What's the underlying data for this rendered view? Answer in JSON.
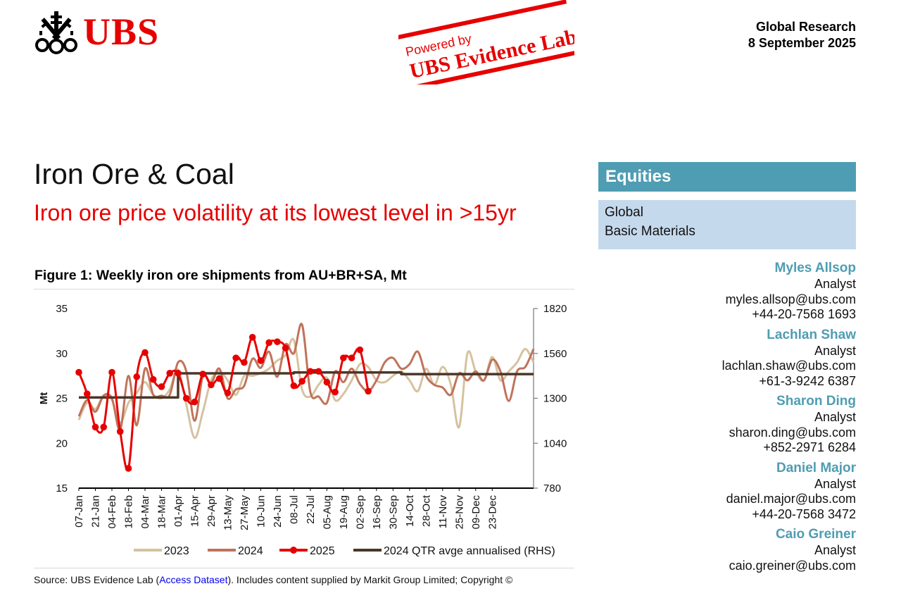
{
  "header": {
    "logo_text": "UBS",
    "logo_icon": "ubs-keys-icon",
    "stamp_top": "Powered by",
    "stamp_bottom": "UBS Evidence Lab",
    "division": "Global Research",
    "date": "8 September 2025"
  },
  "title": "Iron Ore & Coal",
  "subtitle": "Iron ore price volatility at its lowest level in >15yr",
  "figure": {
    "title": "Figure 1: Weekly iron ore shipments from AU+BR+SA, Mt",
    "source_prefix": "Source: UBS Evidence Lab (",
    "source_link": "Access Dataset",
    "source_suffix": "). Includes content supplied by Markit Group Limited; Copyright ©"
  },
  "chart_data": {
    "type": "line",
    "title": "Weekly iron ore shipments from AU+BR+SA, Mt",
    "ylabel": "Mt",
    "ylim": [
      15,
      35
    ],
    "yticks": [
      15,
      20,
      25,
      30,
      35
    ],
    "y2lim": [
      780,
      1820
    ],
    "y2ticks": [
      780,
      1040,
      1300,
      1560,
      1820
    ],
    "x_tick_labels": [
      "07-Jan",
      "21-Jan",
      "04-Feb",
      "18-Feb",
      "04-Mar",
      "18-Mar",
      "01-Apr",
      "15-Apr",
      "29-Apr",
      "13-May",
      "27-May",
      "10-Jun",
      "24-Jun",
      "08-Jul",
      "22-Jul",
      "05-Aug",
      "19-Aug",
      "02-Sep",
      "16-Sep",
      "30-Sep",
      "14-Oct",
      "28-Oct",
      "11-Nov",
      "25-Nov",
      "09-Dec",
      "23-Dec"
    ],
    "legend_position": "bottom",
    "grid": false,
    "series": [
      {
        "name": "2023",
        "color": "#d6c2a0",
        "axis": "left",
        "smooth": true,
        "values": [
          22.6,
          24.5,
          23.8,
          25.3,
          24.8,
          22.3,
          24.5,
          25.6,
          26.8,
          25.4,
          25.0,
          26.0,
          28.2,
          24.3,
          20.6,
          23.5,
          27.0,
          28.0,
          27.0,
          25.4,
          27.5,
          27.5,
          27.8,
          28.3,
          29.2,
          29.8,
          31.5,
          26.0,
          25.2,
          26.5,
          27.3,
          24.8,
          25.5,
          27.0,
          28.8,
          28.5,
          27.0,
          26.8,
          27.5,
          28.0,
          27.0,
          25.8,
          28.3,
          26.5,
          28.5,
          26.5,
          21.8,
          30.0,
          28.0,
          27.0,
          29.6,
          27.0,
          28.0,
          29.0,
          30.5,
          29.0
        ]
      },
      {
        "name": "2024",
        "color": "#c0735a",
        "axis": "left",
        "smooth": true,
        "values": [
          23.0,
          24.8,
          23.5,
          25.3,
          25.0,
          21.5,
          27.5,
          22.0,
          28.3,
          25.4,
          25.3,
          25.4,
          29.0,
          28.0,
          22.5,
          27.5,
          26.7,
          28.3,
          25.0,
          26.0,
          26.4,
          29.4,
          28.4,
          30.2,
          27.4,
          31.0,
          30.0,
          33.2,
          25.7,
          25.2,
          24.5,
          28.0,
          26.8,
          28.3,
          26.6,
          25.8,
          27.0,
          29.0,
          29.5,
          28.3,
          28.8,
          30.2,
          27.5,
          26.5,
          26.2,
          25.4,
          27.8,
          27.0,
          28.0,
          27.0,
          29.3,
          28.0,
          24.7,
          28.0,
          28.5,
          30.5
        ]
      },
      {
        "name": "2025",
        "color": "#e60000",
        "axis": "left",
        "smooth": true,
        "markers": true,
        "values": [
          27.9,
          25.5,
          21.8,
          21.8,
          27.9,
          21.3,
          17.2,
          27.4,
          30.1,
          27.1,
          26.3,
          27.8,
          27.8,
          25.0,
          24.6,
          27.7,
          26.5,
          27.2,
          25.6,
          29.5,
          29.0,
          31.8,
          29.2,
          31.2,
          31.3,
          30.6,
          26.4,
          26.9,
          28.0,
          28.0,
          26.8,
          25.7,
          29.5,
          29.5,
          30.4,
          25.8
        ]
      },
      {
        "name": "2024 QTR avge annualised (RHS)",
        "color": "#4a3728",
        "axis": "right",
        "step": true,
        "values": [
          1305,
          1305,
          1305,
          1305,
          1305,
          1305,
          1305,
          1305,
          1305,
          1305,
          1305,
          1305,
          1445,
          1445,
          1445,
          1445,
          1445,
          1445,
          1445,
          1445,
          1445,
          1445,
          1445,
          1445,
          1445,
          1445,
          1450,
          1450,
          1450,
          1450,
          1450,
          1450,
          1450,
          1450,
          1450,
          1450,
          1450,
          1450,
          1450,
          1440,
          1440,
          1440,
          1440,
          1440,
          1440,
          1440,
          1440,
          1440,
          1440,
          1440,
          1440,
          1440,
          1440,
          1440,
          1440,
          1440
        ]
      }
    ]
  },
  "panel": {
    "equities": "Equities",
    "sectors": [
      "Global",
      "Basic Materials"
    ]
  },
  "analysts": [
    {
      "name": "Myles Allsop",
      "role": "Analyst",
      "email": "myles.allsop@ubs.com",
      "phone": "+44-20-7568 1693"
    },
    {
      "name": "Lachlan Shaw",
      "role": "Analyst",
      "email": "lachlan.shaw@ubs.com",
      "phone": "+61-3-9242 6387"
    },
    {
      "name": "Sharon Ding",
      "role": "Analyst",
      "email": "sharon.ding@ubs.com",
      "phone": "+852-2971 6284"
    },
    {
      "name": "Daniel Major",
      "role": "Analyst",
      "email": "daniel.major@ubs.com",
      "phone": "+44-20-7568 3472"
    },
    {
      "name": "Caio Greiner",
      "role": "Analyst",
      "email": "caio.greiner@ubs.com",
      "phone": ""
    }
  ]
}
